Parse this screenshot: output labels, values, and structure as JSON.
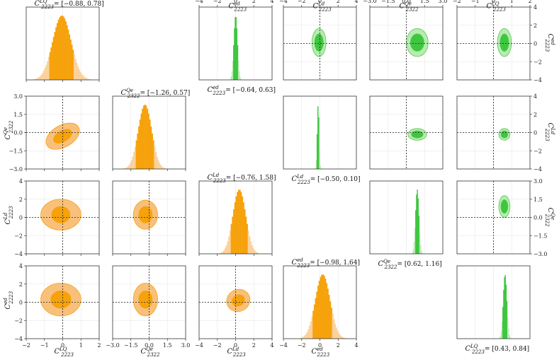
{
  "colors": {
    "orange": "#f6a20c",
    "orange_light": "#fbd29c",
    "orange_mid": "#f8c07a",
    "green": "#3fc63f",
    "green_light": "#b7ebb2",
    "green_line": "#59c94f"
  },
  "chart_data": {
    "type": "corner-plot",
    "parameters": [
      {
        "symbol": "C",
        "sup": "LQ",
        "sub": "2223",
        "range": [
          -2,
          2
        ],
        "ticks": [
          "−2",
          "−1",
          "0",
          "1",
          "2"
        ],
        "interval": "[−0.88, 0.78]",
        "mean": -0.05,
        "sd": 0.5
      },
      {
        "symbol": "C",
        "sup": "Qe",
        "sub": "2322",
        "range": [
          -3,
          3
        ],
        "ticks": [
          "−3.0",
          "−1.5",
          "0.0",
          "1.5",
          "3.0"
        ],
        "interval": "[−1.26, 0.57]",
        "mean": -0.35,
        "sd": 0.55
      },
      {
        "symbol": "C",
        "sup": "Ld",
        "sub": "2223",
        "range": [
          -4,
          4
        ],
        "ticks": [
          "−4",
          "−2",
          "0",
          "2",
          "4"
        ],
        "interval": "[−0.76, 1.58]",
        "mean": 0.4,
        "sd": 0.7
      },
      {
        "symbol": "C",
        "sup": "ed",
        "sub": "2223",
        "range": [
          -4,
          4
        ],
        "ticks": [
          "−4",
          "−2",
          "0",
          "2",
          "4"
        ],
        "interval": "[−0.98, 1.64]",
        "mean": 0.3,
        "sd": 0.8
      }
    ],
    "green_parameters": [
      {
        "symbol": "C",
        "sup": "ed",
        "sub": "2223",
        "range": [
          -4,
          4
        ],
        "ticks": [
          "−4",
          "−2",
          "0",
          "2",
          "4"
        ],
        "interval": "[−0.64, 0.63]",
        "mean": 0.0,
        "sd": 0.2
      },
      {
        "symbol": "C",
        "sup": "Ld",
        "sub": "2223",
        "range": [
          -4,
          4
        ],
        "ticks": [
          "−4",
          "−2",
          "0",
          "2",
          "4"
        ],
        "interval": "[−0.50, 0.10]",
        "mean": -0.2,
        "sd": 0.1
      },
      {
        "symbol": "C",
        "sup": "Qe",
        "sub": "2322",
        "range": [
          -3,
          3
        ],
        "ticks": [
          "−3.0",
          "−1.5",
          "0.0",
          "1.5",
          "3.0"
        ],
        "interval": "[0.62, 1.16]",
        "mean": 0.89,
        "sd": 0.14
      },
      {
        "symbol": "C",
        "sup": "LQ",
        "sub": "2223",
        "range": [
          -2,
          2
        ],
        "ticks": [
          "−2",
          "−1",
          "0",
          "1",
          "2"
        ],
        "interval": "[0.43, 0.84]",
        "mean": 0.63,
        "sd": 0.1
      }
    ],
    "orange_contours": [
      {
        "row": 1,
        "col": 0,
        "cx": 0.0,
        "cy": -0.3,
        "rx_in": 0.55,
        "ry_in": 0.45,
        "rx_out": 1.0,
        "ry_out": 0.9,
        "tilt": "positive"
      },
      {
        "row": 2,
        "col": 0,
        "cx": -0.1,
        "cy": 0.3,
        "rx_in": 0.5,
        "ry_in": 0.9,
        "rx_out": 1.1,
        "ry_out": 1.7,
        "tilt": "none"
      },
      {
        "row": 2,
        "col": 1,
        "cx": -0.3,
        "cy": 0.3,
        "rx_in": 0.55,
        "ry_in": 0.9,
        "rx_out": 1.0,
        "ry_out": 1.6,
        "tilt": "none"
      },
      {
        "row": 3,
        "col": 0,
        "cx": -0.1,
        "cy": 0.3,
        "rx_in": 0.55,
        "ry_in": 0.95,
        "rx_out": 1.1,
        "ry_out": 1.8,
        "tilt": "none"
      },
      {
        "row": 3,
        "col": 1,
        "cx": -0.3,
        "cy": 0.3,
        "rx_in": 0.55,
        "ry_in": 0.95,
        "rx_out": 1.0,
        "ry_out": 1.8,
        "tilt": "none"
      },
      {
        "row": 3,
        "col": 2,
        "cx": 0.3,
        "cy": 0.2,
        "rx_in": 0.7,
        "ry_in": 0.6,
        "rx_out": 1.3,
        "ry_out": 1.2,
        "tilt": "positive"
      }
    ],
    "green_contours": [
      {
        "row": 0,
        "col": 3,
        "cx": -0.1,
        "cy": 0.1,
        "sx": 0.3,
        "sy": 0.6
      },
      {
        "row": 0,
        "col": 4,
        "cx": 0.9,
        "cy": 0.1,
        "sx": 0.35,
        "sy": 0.6
      },
      {
        "row": 0,
        "col": 5,
        "cx": 0.6,
        "cy": 0.1,
        "sx": 0.15,
        "sy": 0.6
      },
      {
        "row": 1,
        "col": 4,
        "cx": 0.9,
        "cy": -0.2,
        "sx": 0.3,
        "sy": 0.25
      },
      {
        "row": 1,
        "col": 5,
        "cx": 0.6,
        "cy": -0.2,
        "sx": 0.12,
        "sy": 0.25
      },
      {
        "row": 2,
        "col": 5,
        "cx": 0.6,
        "cy": 0.9,
        "sx": 0.12,
        "sy": 0.35
      }
    ],
    "layout_grid": "6 columns x 4 rows; orange lower-triangle corner plot on the left, green upper-triangle corner plot on the right"
  }
}
